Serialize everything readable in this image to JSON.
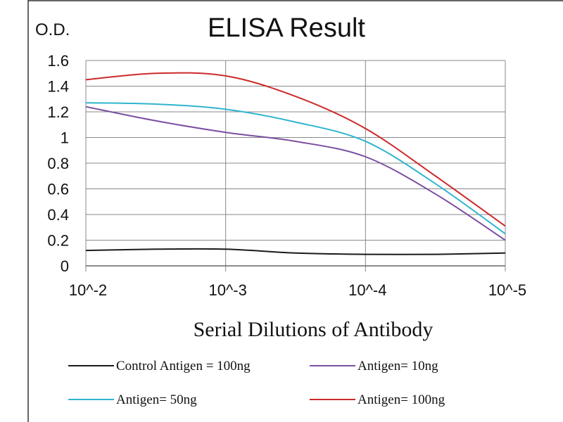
{
  "chart_data": {
    "type": "line",
    "title": "ELISA Result",
    "ylabel": "O.D.",
    "xlabel": "Serial Dilutions of Antibody",
    "x_scale": "log",
    "xlim": [
      0.01,
      1e-05
    ],
    "ylim": [
      0,
      1.6
    ],
    "grid": true,
    "legend_placement": "bottom",
    "x_tick_labels": [
      "10^-2",
      "10^-3",
      "10^-4",
      "10^-5"
    ],
    "x_tick_values": [
      0.01,
      0.001,
      0.0001,
      1e-05
    ],
    "y_tick_labels": [
      "0",
      "0.2",
      "0.4",
      "0.6",
      "0.8",
      "1",
      "1.2",
      "1.4",
      "1.6"
    ],
    "y_tick_values": [
      0,
      0.2,
      0.4,
      0.6,
      0.8,
      1,
      1.2,
      1.4,
      1.6
    ],
    "x": [
      0.01,
      0.00316,
      0.001,
      0.000316,
      0.0001,
      3.16e-05,
      1e-05
    ],
    "series": [
      {
        "name": "Control Antigen = 100ng",
        "color": "#1a1a1a",
        "values": [
          0.12,
          0.13,
          0.13,
          0.1,
          0.09,
          0.09,
          0.1
        ]
      },
      {
        "name": "Antigen= 10ng",
        "color": "#7b4fa0",
        "values": [
          1.24,
          1.13,
          1.04,
          0.97,
          0.85,
          0.56,
          0.2
        ]
      },
      {
        "name": "Antigen= 50ng",
        "color": "#2fb5cf",
        "values": [
          1.27,
          1.26,
          1.22,
          1.12,
          0.97,
          0.64,
          0.25
        ]
      },
      {
        "name": "Antigen= 100ng",
        "color": "#cc2a2a",
        "values": [
          1.45,
          1.5,
          1.48,
          1.32,
          1.07,
          0.7,
          0.31
        ]
      }
    ]
  }
}
